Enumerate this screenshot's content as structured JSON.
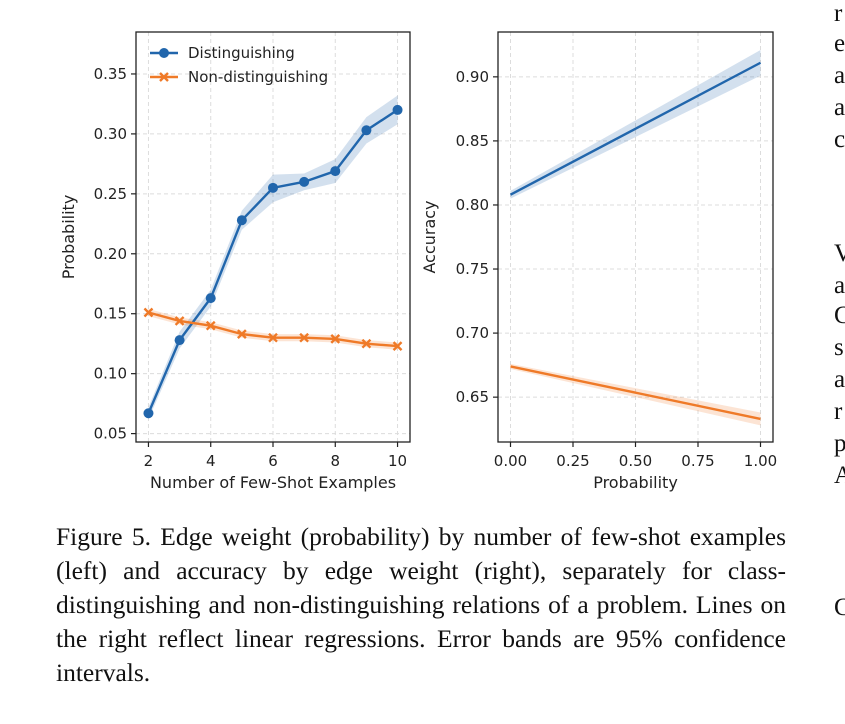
{
  "chart_data": [
    {
      "type": "line",
      "xlabel": "Number of Few-Shot Examples",
      "ylabel": "Probability",
      "xlim": [
        1.6,
        10.4
      ],
      "ylim": [
        0.043,
        0.385
      ],
      "xticks": [
        2,
        4,
        6,
        8,
        10
      ],
      "xtick_labels": [
        "2",
        "4",
        "6",
        "8",
        "10"
      ],
      "yticks": [
        0.05,
        0.1,
        0.15,
        0.2,
        0.25,
        0.3,
        0.35
      ],
      "ytick_labels": [
        "0.05",
        "0.10",
        "0.15",
        "0.20",
        "0.25",
        "0.30",
        "0.35"
      ],
      "grid": true,
      "legend_position": "upper-left",
      "x": [
        2,
        3,
        4,
        5,
        6,
        7,
        8,
        9,
        10
      ],
      "series": [
        {
          "name": "Distinguishing",
          "color": "#2166ac",
          "marker": "circle",
          "values": [
            0.067,
            0.128,
            0.163,
            0.228,
            0.255,
            0.26,
            0.269,
            0.303,
            0.32
          ],
          "ci_low": [
            0.062,
            0.121,
            0.156,
            0.22,
            0.243,
            0.253,
            0.259,
            0.292,
            0.308
          ],
          "ci_high": [
            0.072,
            0.135,
            0.17,
            0.236,
            0.266,
            0.267,
            0.279,
            0.314,
            0.332
          ]
        },
        {
          "name": "Non-distinguishing",
          "color": "#ef7a28",
          "marker": "x",
          "values": [
            0.151,
            0.144,
            0.14,
            0.133,
            0.13,
            0.13,
            0.129,
            0.125,
            0.123
          ],
          "ci_low": [
            0.148,
            0.141,
            0.137,
            0.13,
            0.127,
            0.127,
            0.126,
            0.122,
            0.12
          ],
          "ci_high": [
            0.154,
            0.147,
            0.143,
            0.136,
            0.133,
            0.133,
            0.132,
            0.128,
            0.126
          ]
        }
      ]
    },
    {
      "type": "line",
      "xlabel": "Probability",
      "ylabel": "Accuracy",
      "xlim": [
        -0.05,
        1.05
      ],
      "ylim": [
        0.615,
        0.935
      ],
      "xticks": [
        0,
        0.25,
        0.5,
        0.75,
        1.0
      ],
      "xtick_labels": [
        "0.00",
        "0.25",
        "0.50",
        "0.75",
        "1.00"
      ],
      "yticks": [
        0.65,
        0.7,
        0.75,
        0.8,
        0.85,
        0.9
      ],
      "ytick_labels": [
        "0.65",
        "0.70",
        "0.75",
        "0.80",
        "0.85",
        "0.90"
      ],
      "grid": true,
      "x": [
        0,
        1
      ],
      "series": [
        {
          "color": "#2166ac",
          "values": [
            0.808,
            0.911
          ],
          "ci_low": [
            0.805,
            0.901
          ],
          "ci_high": [
            0.811,
            0.921
          ]
        },
        {
          "color": "#ef7a28",
          "values": [
            0.674,
            0.633
          ],
          "ci_low": [
            0.672,
            0.628
          ],
          "ci_high": [
            0.676,
            0.638
          ]
        }
      ]
    }
  ],
  "caption": "Figure 5. Edge weight (probability) by number of few-shot examples (left) and accuracy by edge weight (right), separately for class-distinguishing and non-distinguishing relations of a problem. Lines on the right reflect linear regressions. Error bands are 95% confidence intervals.",
  "margin_letters": [
    "r",
    "e",
    "a",
    "a",
    "c",
    "V",
    "a",
    "C",
    "s",
    "a",
    "r",
    "p",
    "A",
    "C"
  ]
}
